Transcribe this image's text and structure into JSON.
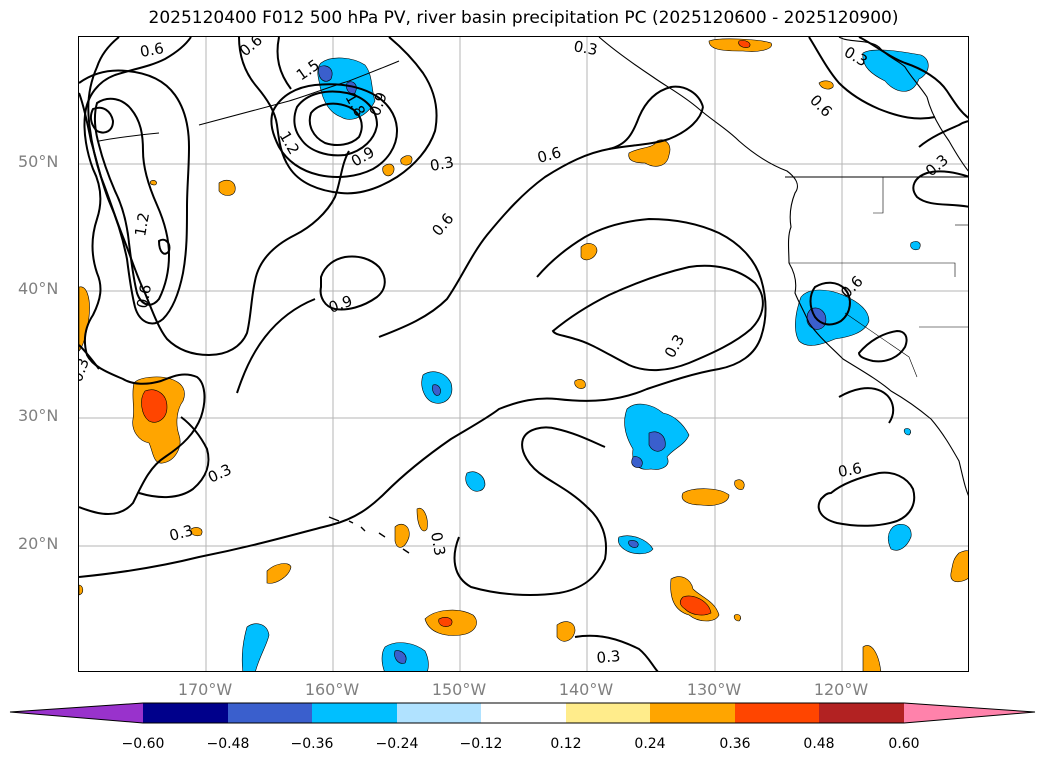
{
  "title": "2025120400 F012 500 hPa PV, river basin precipitation PC (2025120600 - 2025120900)",
  "axes": {
    "lat_labels": [
      "50°N",
      "40°N",
      "30°N",
      "20°N"
    ],
    "lon_labels": [
      "170°W",
      "160°W",
      "150°W",
      "140°W",
      "130°W",
      "120°W"
    ]
  },
  "contour_labels": [
    "0.3",
    "0.3",
    "0.3",
    "0.3",
    "0.3",
    "0.3",
    "0.3",
    "0.3",
    "0.3",
    "0.3",
    "0.6",
    "0.6",
    "0.6",
    "0.6",
    "0.6",
    "0.6",
    "0.6",
    "0.6",
    "0.9",
    "0.9",
    "0.9",
    "1.2",
    "1.2",
    "1.5",
    "1.8"
  ],
  "colorbar": {
    "ticks": [
      "−0.60",
      "−0.48",
      "−0.36",
      "−0.24",
      "−0.12",
      "0.12",
      "0.24",
      "0.36",
      "0.48",
      "0.60"
    ],
    "colors": [
      "#9932cc",
      "#00008b",
      "#3a5fcd",
      "#00bfff",
      "#b0e2ff",
      "#ffffff",
      "#ffec8b",
      "#ffa500",
      "#ff4500",
      "#b22222",
      "#ff82ab"
    ]
  }
}
